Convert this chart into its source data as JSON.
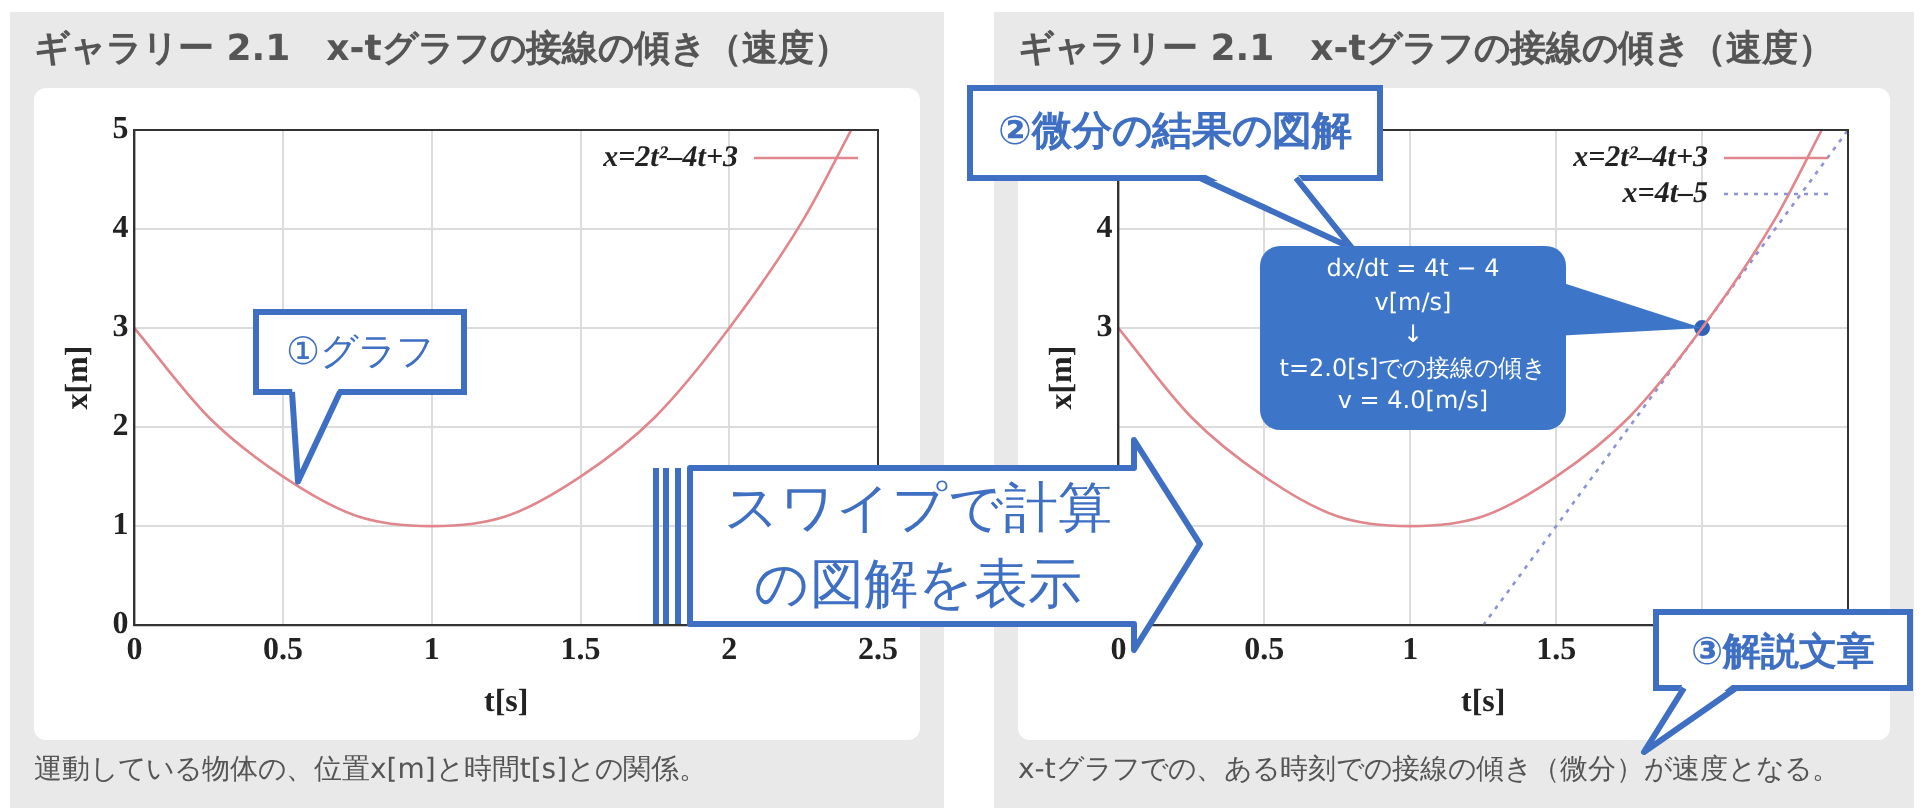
{
  "chart_data": [
    {
      "type": "line",
      "title": "ギャラリー 2.1　x-tグラフの接線の傾き（速度）",
      "xlabel": "t[s]",
      "ylabel": "x[m]",
      "series": [
        {
          "name": "x=2t²–4t+3",
          "color": "#e0868c",
          "x": [
            0,
            0.25,
            0.5,
            0.75,
            1,
            1.25,
            1.5,
            1.75,
            2,
            2.25,
            2.41
          ],
          "values": [
            3,
            2.1,
            1.5,
            1.1,
            1,
            1.1,
            1.5,
            2.1,
            3,
            4.1,
            5
          ]
        }
      ],
      "xlim": [
        0,
        2.5
      ],
      "ylim": [
        0,
        5
      ],
      "xticks": [
        0,
        0.5,
        1,
        1.5,
        2,
        2.5
      ],
      "yticks": [
        0,
        1,
        2,
        3,
        4,
        5
      ],
      "grid": true,
      "legend": "top right",
      "marker": "none",
      "annotations": [
        "運動している物体の、位置x[m]と時間t[s]との関係。",
        {
          "text": "①グラフ",
          "x": 0.55,
          "y": 1.45
        },
        "スワイプで計算",
        "の図解を表示"
      ]
    },
    {
      "type": "line",
      "title": "ギャラリー 2.1　x-tグラフの接線の傾き（速度）",
      "xlabel": "t[s]",
      "ylabel": "x[m]",
      "series": [
        {
          "name": "x=2t²–4t+3",
          "color": "#e0868c",
          "x": [
            0,
            0.25,
            0.5,
            0.75,
            1,
            1.25,
            1.5,
            1.75,
            2,
            2.25,
            2.41
          ],
          "values": [
            3,
            2.1,
            1.5,
            1.1,
            1,
            1.1,
            1.5,
            2.1,
            3,
            4.1,
            5
          ]
        },
        {
          "name": "x=4t–5",
          "color": "#8c92d6",
          "line_style": "dotted",
          "x": [
            1.25,
            2.5
          ],
          "values": [
            0,
            5
          ]
        },
        {
          "type": "scatter",
          "color": "#2f62b8",
          "marker": "circle",
          "x": [
            2
          ],
          "values": [
            3
          ]
        }
      ],
      "xlim": [
        0,
        2.5
      ],
      "ylim": [
        0,
        5
      ],
      "xticks": [
        0,
        0.5,
        1,
        1.5,
        {
          "value": 2,
          "label": null
        },
        {
          "value": 2.5,
          "label": null
        }
      ],
      "yticks": [
        {
          "value": 0,
          "label": null
        },
        {
          "value": 1,
          "label": null
        },
        {
          "value": 2,
          "label": null
        },
        3,
        4,
        {
          "value": 5,
          "label": null
        }
      ],
      "grid": true,
      "legend": "top right",
      "marker": "none",
      "annotations": [
        "x-tグラフでの、ある時刻での接線の傾き（微分）が速度となる。",
        "②微分の結果の図解",
        {
          "text": "dx/dt = 4t − 4\nv[m/s]\n↓\nt=2.0[s]での接線の傾き\nv = 4.0[m/s]",
          "x": 2,
          "y": 3
        },
        "③解説文章"
      ]
    }
  ]
}
